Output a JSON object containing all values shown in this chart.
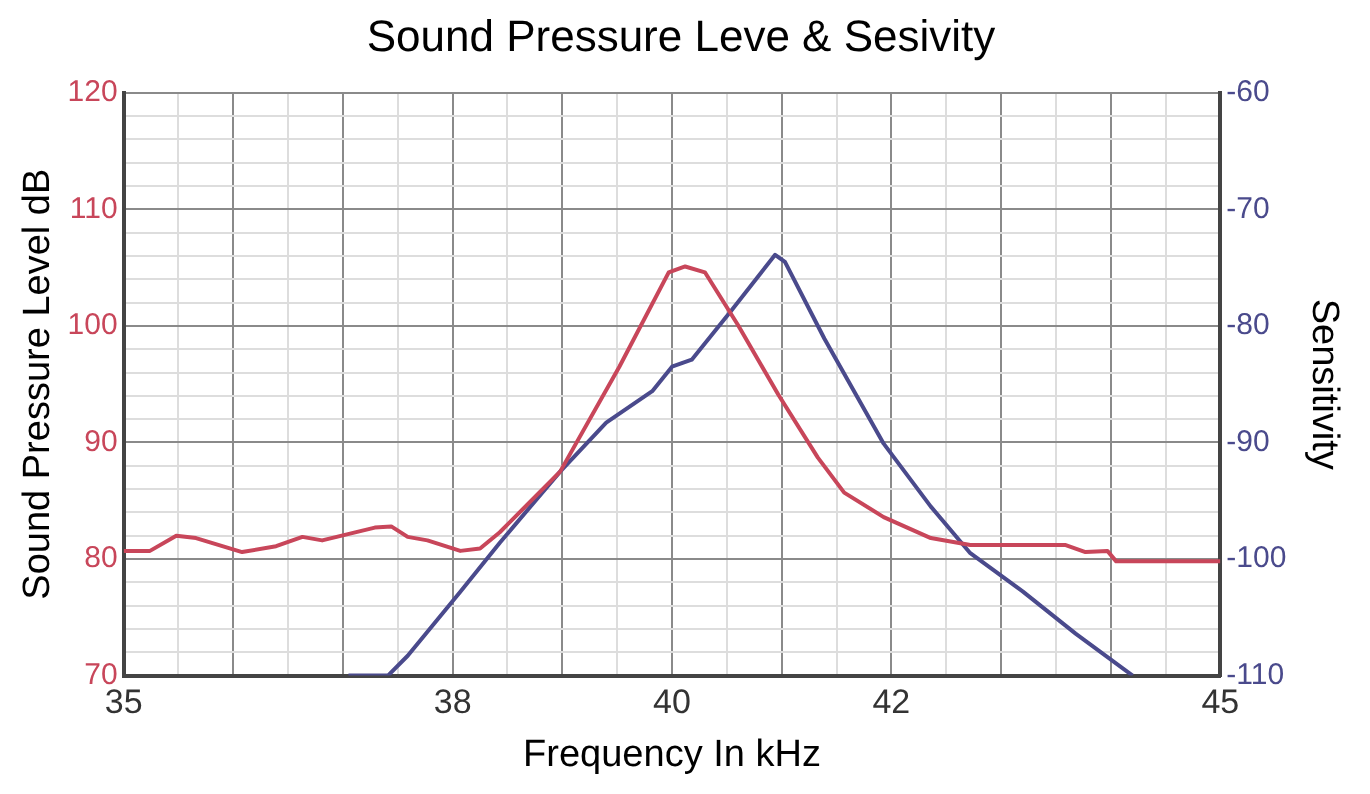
{
  "chart_data": {
    "type": "line",
    "title": "Sound Pressure Leve & Sesivity",
    "xlabel": "Frequency In kHz",
    "ylabel": "Sound Pressure Level dB",
    "y2label": "Sensitivity",
    "xlim": [
      35,
      45
    ],
    "xticks": [
      35,
      {
        "value": 35.5,
        "label": null
      },
      {
        "value": 36,
        "label": null
      },
      {
        "value": 36.5,
        "label": null
      },
      {
        "value": 37,
        "label": null
      },
      {
        "value": 37.5,
        "label": null
      },
      38,
      {
        "value": 38.5,
        "label": null
      },
      {
        "value": 39,
        "label": null
      },
      {
        "value": 39.5,
        "label": null
      },
      40,
      {
        "value": 40.5,
        "label": null
      },
      {
        "value": 41,
        "label": null
      },
      {
        "value": 41.5,
        "label": null
      },
      42,
      {
        "value": 42.5,
        "label": null
      },
      {
        "value": 43,
        "label": null
      },
      {
        "value": 43.5,
        "label": null
      },
      {
        "value": 44,
        "label": null
      },
      {
        "value": 44.5,
        "label": null
      },
      45
    ],
    "ylim": [
      70,
      120
    ],
    "yticks": [
      70,
      {
        "value": 72,
        "label": null
      },
      {
        "value": 74,
        "label": null
      },
      {
        "value": 76,
        "label": null
      },
      {
        "value": 78,
        "label": null
      },
      80,
      {
        "value": 82,
        "label": null
      },
      {
        "value": 84,
        "label": null
      },
      {
        "value": 86,
        "label": null
      },
      {
        "value": 88,
        "label": null
      },
      90,
      {
        "value": 92,
        "label": null
      },
      {
        "value": 94,
        "label": null
      },
      {
        "value": 96,
        "label": null
      },
      {
        "value": 98,
        "label": null
      },
      100,
      {
        "value": 102,
        "label": null
      },
      {
        "value": 104,
        "label": null
      },
      {
        "value": 106,
        "label": null
      },
      {
        "value": 108,
        "label": null
      },
      110,
      {
        "value": 112,
        "label": null
      },
      {
        "value": 114,
        "label": null
      },
      {
        "value": 116,
        "label": null
      },
      {
        "value": 118,
        "label": null
      },
      120
    ],
    "y2lim": [
      -110,
      -60
    ],
    "y2ticks": [
      -110,
      -100,
      -90,
      -80,
      -70,
      -60
    ],
    "grid": true,
    "legend": false,
    "marker": "none",
    "line_style": "solid",
    "series": [
      {
        "color": "#c8465a",
        "x": [
          35,
          35.24,
          35.48,
          35.66,
          36.08,
          36.39,
          36.63,
          36.81,
          37.29,
          37.44,
          37.59,
          37.77,
          38.07,
          38.25,
          38.43,
          38.98,
          39.52,
          39.97,
          40.12,
          40.3,
          40.6,
          40.97,
          41.33,
          41.57,
          41.93,
          42.36,
          42.72,
          43.44,
          43.59,
          43.77,
          43.97,
          44.05,
          45
        ],
        "values": [
          80.7,
          80.7,
          82.0,
          81.8,
          80.6,
          81.1,
          81.9,
          81.6,
          82.7,
          82.8,
          81.9,
          81.6,
          80.7,
          80.9,
          82.3,
          87.5,
          96.5,
          104.6,
          105.1,
          104.6,
          100.1,
          94.1,
          88.7,
          85.7,
          83.6,
          81.8,
          81.2,
          81.2,
          81.2,
          80.6,
          80.7,
          79.8,
          79.8
        ]
      },
      {
        "color": "#4a4a8c",
        "axis": "y2",
        "x": [
          37.05,
          37.41,
          37.59,
          38.07,
          38.43,
          38.98,
          39.4,
          39.82,
          40.0,
          40.18,
          40.54,
          40.94,
          41.03,
          41.39,
          41.93,
          42.36,
          42.72,
          43.2,
          43.68,
          44.2
        ],
        "values": [
          -110,
          -110,
          -108.3,
          -102.8,
          -98.6,
          -92.5,
          -88.3,
          -85.6,
          -83.5,
          -82.9,
          -78.7,
          -73.9,
          -74.5,
          -81.1,
          -90.1,
          -95.5,
          -99.5,
          -102.8,
          -106.4,
          -110
        ]
      }
    ]
  }
}
